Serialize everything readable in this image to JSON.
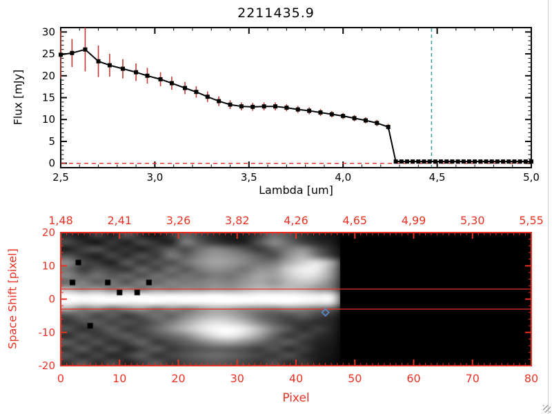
{
  "title": "2211435.9",
  "colors": {
    "axis_red": "#e93223",
    "error_bar_red": "#bc3a31",
    "teal_dashed": "#3fa0a0",
    "marker_blue": "#5b87c5",
    "black": "#000000"
  },
  "chart_data": [
    {
      "type": "line",
      "title": "2211435.9",
      "xlabel": "Lambda [um]",
      "ylabel": "Flux [mJy]",
      "xlim": [
        2.5,
        5.0
      ],
      "ylim": [
        0,
        30
      ],
      "xtick_labels": [
        "2,5",
        "3,0",
        "3,5",
        "4,0",
        "4,5",
        "5,0"
      ],
      "ytick_labels": [
        "0",
        "5",
        "10",
        "15",
        "20",
        "25",
        "30"
      ],
      "series": [
        {
          "name": "spectrum",
          "lambda": [
            2.5,
            2.56,
            2.63,
            2.7,
            2.76,
            2.83,
            2.9,
            2.96,
            3.03,
            3.09,
            3.16,
            3.22,
            3.28,
            3.34,
            3.4,
            3.46,
            3.52,
            3.58,
            3.64,
            3.7,
            3.76,
            3.82,
            3.88,
            3.94,
            4.0,
            4.06,
            4.12,
            4.18,
            4.24,
            4.28,
            4.31,
            4.34,
            4.37,
            4.4,
            4.43,
            4.46,
            4.49,
            4.52,
            4.55,
            4.58,
            4.61,
            4.64,
            4.67,
            4.7,
            4.73,
            4.76,
            4.79,
            4.82,
            4.85,
            4.88,
            4.91,
            4.94,
            4.97,
            5.0
          ],
          "flux": [
            24.8,
            25.2,
            26.0,
            23.3,
            22.4,
            21.6,
            20.8,
            20.0,
            19.2,
            18.3,
            17.2,
            16.3,
            15.2,
            14.2,
            13.4,
            13.0,
            12.9,
            13.0,
            13.0,
            12.7,
            12.3,
            12.0,
            11.6,
            11.2,
            10.8,
            10.3,
            9.8,
            9.2,
            8.3,
            0.4,
            0.4,
            0.4,
            0.4,
            0.4,
            0.4,
            0.4,
            0.4,
            0.4,
            0.4,
            0.4,
            0.4,
            0.4,
            0.4,
            0.4,
            0.4,
            0.4,
            0.4,
            0.4,
            0.4,
            0.4,
            0.4,
            0.4,
            0.4,
            0.4
          ],
          "flux_err": [
            5.5,
            3.2,
            5.0,
            3.6,
            2.6,
            2.2,
            2.0,
            1.8,
            1.6,
            1.5,
            1.4,
            1.3,
            1.2,
            1.1,
            1.0,
            0.9,
            0.9,
            0.9,
            0.9,
            0.8,
            0.8,
            0.8,
            0.8,
            0.7,
            0.7,
            0.7,
            0.7,
            0.7,
            0.7,
            0,
            0,
            0,
            0,
            0,
            0,
            0,
            0,
            0,
            0,
            0,
            0,
            0,
            0,
            0,
            0,
            0,
            0,
            0,
            0,
            0,
            0,
            0,
            0,
            0
          ]
        }
      ],
      "vline": {
        "x": 4.47,
        "style": "dashed",
        "color_key": "teal_dashed"
      },
      "hline": {
        "y": 0,
        "style": "dashed",
        "color_key": "axis_red"
      }
    },
    {
      "type": "heatmap",
      "xlabel": "Pixel",
      "ylabel": "Space Shift [pixel]",
      "xlim": [
        0,
        80
      ],
      "ylim": [
        -20,
        20
      ],
      "xtick_labels": [
        "0",
        "10",
        "20",
        "30",
        "40",
        "50",
        "60",
        "70",
        "80"
      ],
      "ytick_labels": [
        "20",
        "10",
        "0",
        "-10",
        "-20"
      ],
      "top_axis_labels": [
        "1,48",
        "2,41",
        "3,26",
        "3,82",
        "4,26",
        "4,65",
        "4,99",
        "5,30",
        "5,55"
      ],
      "hlines": [
        3,
        -3
      ],
      "marker": {
        "x": 45,
        "y": -4,
        "shape": "diamond",
        "color": "#5b87c5"
      },
      "dark_squares": [
        [
          3,
          11
        ],
        [
          2,
          5
        ],
        [
          8,
          5
        ],
        [
          10,
          2
        ],
        [
          13,
          2
        ],
        [
          15,
          5
        ],
        [
          5,
          -8
        ]
      ],
      "grid": {
        "cols": 32,
        "rows": 20,
        "value_max": 255,
        "values": [
          [
            45,
            25,
            65,
            30,
            85,
            40,
            20,
            55,
            100,
            65,
            40,
            25,
            30,
            60,
            110,
            85,
            50,
            30,
            20,
            0,
            0,
            0,
            0,
            0,
            0,
            0,
            0,
            0,
            0,
            0,
            0,
            0
          ],
          [
            75,
            40,
            20,
            60,
            30,
            75,
            50,
            30,
            130,
            85,
            55,
            35,
            30,
            85,
            140,
            105,
            65,
            40,
            25,
            0,
            0,
            0,
            0,
            0,
            0,
            0,
            0,
            0,
            0,
            0,
            0,
            0
          ],
          [
            30,
            65,
            85,
            40,
            55,
            30,
            65,
            95,
            75,
            115,
            135,
            115,
            85,
            55,
            95,
            125,
            145,
            85,
            40,
            0,
            0,
            0,
            0,
            0,
            0,
            0,
            0,
            0,
            0,
            0,
            0,
            0
          ],
          [
            85,
            50,
            30,
            75,
            40,
            85,
            55,
            125,
            95,
            135,
            155,
            145,
            125,
            95,
            75,
            145,
            175,
            115,
            55,
            0,
            0,
            0,
            0,
            0,
            0,
            0,
            0,
            0,
            0,
            0,
            0,
            0
          ],
          [
            140,
            75,
            55,
            30,
            95,
            50,
            85,
            75,
            115,
            145,
            165,
            155,
            135,
            115,
            120,
            170,
            210,
            225,
            160,
            0,
            0,
            0,
            0,
            0,
            0,
            0,
            0,
            0,
            0,
            0,
            0,
            0
          ],
          [
            115,
            55,
            85,
            65,
            50,
            105,
            65,
            115,
            85,
            125,
            145,
            135,
            115,
            145,
            150,
            210,
            240,
            235,
            150,
            0,
            0,
            0,
            0,
            0,
            0,
            0,
            0,
            0,
            0,
            0,
            0,
            0
          ],
          [
            135,
            95,
            115,
            85,
            105,
            75,
            115,
            95,
            115,
            105,
            125,
            115,
            135,
            165,
            160,
            200,
            230,
            215,
            140,
            0,
            0,
            0,
            0,
            0,
            0,
            0,
            0,
            0,
            0,
            0,
            0,
            0
          ],
          [
            100,
            130,
            90,
            120,
            80,
            130,
            100,
            130,
            120,
            130,
            140,
            130,
            150,
            170,
            150,
            185,
            200,
            180,
            120,
            0,
            0,
            0,
            0,
            0,
            0,
            0,
            0,
            0,
            0,
            0,
            0,
            0
          ],
          [
            180,
            140,
            160,
            120,
            150,
            110,
            150,
            130,
            150,
            140,
            160,
            150,
            170,
            190,
            180,
            190,
            180,
            150,
            120,
            0,
            0,
            0,
            0,
            0,
            0,
            0,
            0,
            0,
            0,
            0,
            0,
            0
          ],
          [
            255,
            245,
            250,
            240,
            250,
            255,
            245,
            252,
            248,
            252,
            255,
            250,
            246,
            252,
            255,
            252,
            248,
            242,
            232,
            0,
            0,
            0,
            0,
            0,
            0,
            0,
            0,
            0,
            0,
            0,
            0,
            0
          ],
          [
            250,
            238,
            246,
            250,
            242,
            246,
            252,
            242,
            250,
            246,
            252,
            255,
            250,
            246,
            252,
            255,
            246,
            236,
            226,
            0,
            0,
            0,
            0,
            0,
            0,
            0,
            0,
            0,
            0,
            0,
            0,
            0
          ],
          [
            170,
            120,
            140,
            100,
            130,
            150,
            110,
            140,
            120,
            150,
            170,
            160,
            140,
            130,
            120,
            140,
            130,
            110,
            90,
            0,
            0,
            0,
            0,
            0,
            0,
            0,
            0,
            0,
            0,
            0,
            0,
            0
          ],
          [
            75,
            105,
            65,
            95,
            55,
            85,
            115,
            95,
            135,
            165,
            185,
            175,
            145,
            105,
            85,
            75,
            95,
            65,
            45,
            0,
            0,
            0,
            0,
            0,
            0,
            0,
            0,
            0,
            0,
            0,
            0,
            0
          ],
          [
            55,
            75,
            95,
            65,
            85,
            65,
            95,
            125,
            165,
            205,
            225,
            215,
            185,
            135,
            95,
            65,
            55,
            45,
            35,
            0,
            0,
            0,
            0,
            0,
            0,
            0,
            0,
            0,
            0,
            0,
            0,
            0
          ],
          [
            85,
            45,
            65,
            95,
            55,
            75,
            105,
            145,
            185,
            225,
            250,
            255,
            235,
            185,
            125,
            85,
            45,
            65,
            35,
            0,
            0,
            0,
            0,
            0,
            0,
            0,
            0,
            0,
            0,
            0,
            0,
            0
          ],
          [
            45,
            85,
            55,
            75,
            95,
            65,
            85,
            105,
            135,
            185,
            225,
            240,
            210,
            160,
            100,
            55,
            75,
            45,
            30,
            0,
            0,
            0,
            0,
            0,
            0,
            0,
            0,
            0,
            0,
            0,
            0,
            0
          ],
          [
            95,
            55,
            85,
            45,
            65,
            105,
            55,
            75,
            95,
            125,
            155,
            165,
            140,
            110,
            80,
            95,
            55,
            35,
            25,
            0,
            0,
            0,
            0,
            0,
            0,
            0,
            0,
            0,
            0,
            0,
            0,
            0
          ],
          [
            55,
            95,
            45,
            85,
            35,
            65,
            95,
            55,
            75,
            85,
            95,
            90,
            80,
            60,
            85,
            45,
            65,
            30,
            20,
            0,
            0,
            0,
            0,
            0,
            0,
            0,
            0,
            0,
            0,
            0,
            0,
            0
          ],
          [
            85,
            40,
            75,
            35,
            60,
            95,
            50,
            70,
            85,
            100,
            110,
            100,
            85,
            70,
            55,
            85,
            45,
            28,
            18,
            0,
            0,
            0,
            0,
            0,
            0,
            0,
            0,
            0,
            0,
            0,
            0,
            0
          ],
          [
            50,
            90,
            40,
            80,
            30,
            60,
            90,
            50,
            70,
            80,
            90,
            80,
            70,
            50,
            80,
            40,
            60,
            25,
            15,
            0,
            0,
            0,
            0,
            0,
            0,
            0,
            0,
            0,
            0,
            0,
            0,
            0
          ]
        ]
      }
    }
  ]
}
